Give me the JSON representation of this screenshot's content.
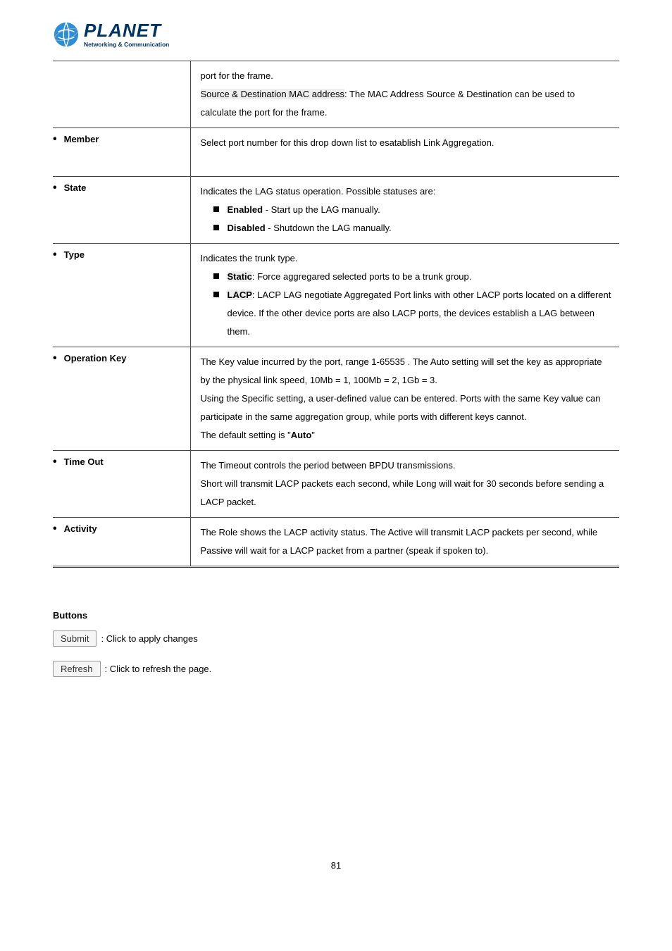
{
  "logo": {
    "name": "PLANET",
    "tagline": "Networking & Communication"
  },
  "rows": [
    {
      "label": "",
      "cells": [
        {
          "kind": "text",
          "text": "port for the frame."
        },
        {
          "kind": "hl-colon-text",
          "hl": "Source & Destination MAC address",
          "text": ": The MAC Address Source & Destination can be used to calculate the port for the frame."
        }
      ]
    },
    {
      "label": "Member",
      "cells": [
        {
          "kind": "text",
          "text": "Select port number for this drop down list to esatablish Link Aggregation."
        }
      ],
      "extraBlank": true
    },
    {
      "label": "State",
      "cells": [
        {
          "kind": "text",
          "text": "Indicates the LAG status operation. Possible statuses are:"
        }
      ],
      "sublist": [
        {
          "bold": "Enabled",
          "text": " - Start up the LAG manually."
        },
        {
          "bold": "Disabled",
          "text": " - Shutdown the LAG manually."
        }
      ]
    },
    {
      "label": "Type",
      "cells": [
        {
          "kind": "text",
          "text": "Indicates the trunk type."
        }
      ],
      "sublist": [
        {
          "bold_hl": "Static",
          "text": ": Force aggregared selected ports to be a trunk group."
        },
        {
          "bold_hl": "LACP",
          "text": ": LACP LAG negotiate Aggregated Port links with other LACP ports located on a different device. If the other device ports are also LACP ports, the devices establish a LAG between them."
        }
      ]
    },
    {
      "label": "Operation Key",
      "cells": [
        {
          "kind": "text",
          "text": "The Key value incurred by the port, range 1-65535 . The Auto setting will set the key as appropriate by the physical link speed, 10Mb = 1, 100Mb = 2, 1Gb = 3."
        },
        {
          "kind": "text",
          "text": "Using the Specific setting, a user-defined value can be entered. Ports with the same Key value can participate in the same aggregation group, while ports with different keys cannot."
        },
        {
          "kind": "default",
          "prefix": "The default setting is \"",
          "bold": "Auto",
          "suffix": "\""
        }
      ]
    },
    {
      "label": "Time Out",
      "cells": [
        {
          "kind": "text",
          "text": "The Timeout controls the period between BPDU transmissions."
        },
        {
          "kind": "text",
          "text": "Short will transmit LACP packets each second, while Long will wait for 30 seconds before sending a LACP packet."
        }
      ]
    },
    {
      "label": "Activity",
      "cells": [
        {
          "kind": "text",
          "text": "The Role shows the LACP activity status. The Active will transmit LACP packets per second, while Passive will wait for a LACP packet from a partner (speak if spoken to)."
        }
      ]
    }
  ],
  "buttonsHeader": "Buttons",
  "buttons": [
    {
      "label": "Submit",
      "desc": ": Click to apply changes"
    },
    {
      "label": "Refresh",
      "desc": ": Click to refresh the page."
    }
  ],
  "pageNumber": "81"
}
